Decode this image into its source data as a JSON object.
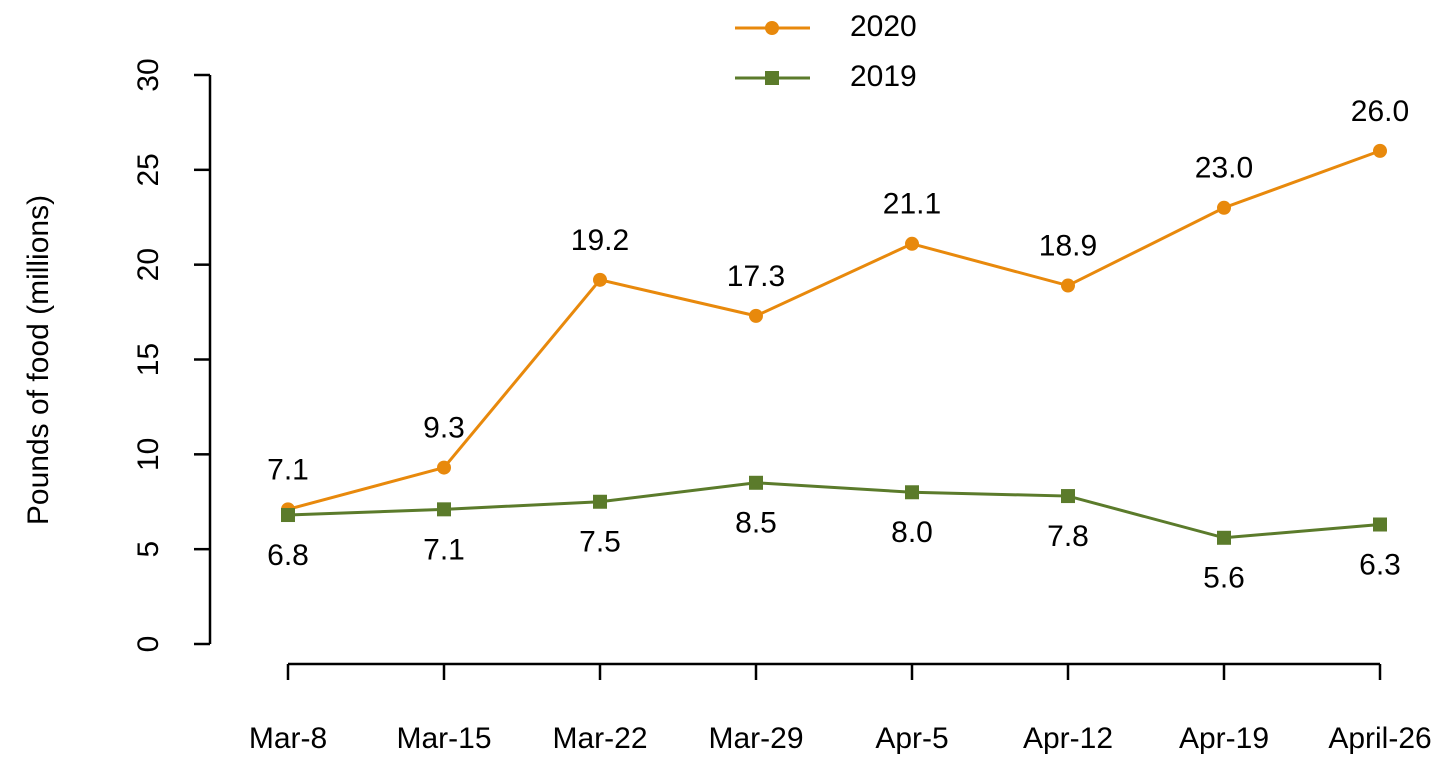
{
  "chart_data": {
    "type": "line",
    "y_label": "Pounds of food (millions)",
    "categories": [
      "Mar-8",
      "Mar-15",
      "Mar-22",
      "Mar-29",
      "Apr-5",
      "Apr-12",
      "Apr-19",
      "April-26"
    ],
    "series": [
      {
        "name": "2020",
        "color": "#e8890c",
        "marker": "circle",
        "label_position": "above",
        "values": [
          7.1,
          9.3,
          19.2,
          17.3,
          21.1,
          18.9,
          23,
          26
        ],
        "value_labels": [
          "7.1",
          "9.3",
          "19.2",
          "17.3",
          "21.1",
          "18.9",
          "23.0",
          "26.0"
        ]
      },
      {
        "name": "2019",
        "color": "#5b7b2b",
        "marker": "square",
        "label_position": "below",
        "values": [
          6.8,
          7.1,
          7.5,
          8.5,
          8,
          7.8,
          5.6,
          6.3
        ],
        "value_labels": [
          "6.8",
          "7.1",
          "7.5",
          "8.5",
          "8.0",
          "7.8",
          "5.6",
          "6.3"
        ]
      }
    ],
    "ylim": [
      0,
      30
    ],
    "yticks": [
      0,
      5,
      10,
      15,
      20,
      25,
      30
    ],
    "grid": false,
    "legend": "top"
  }
}
